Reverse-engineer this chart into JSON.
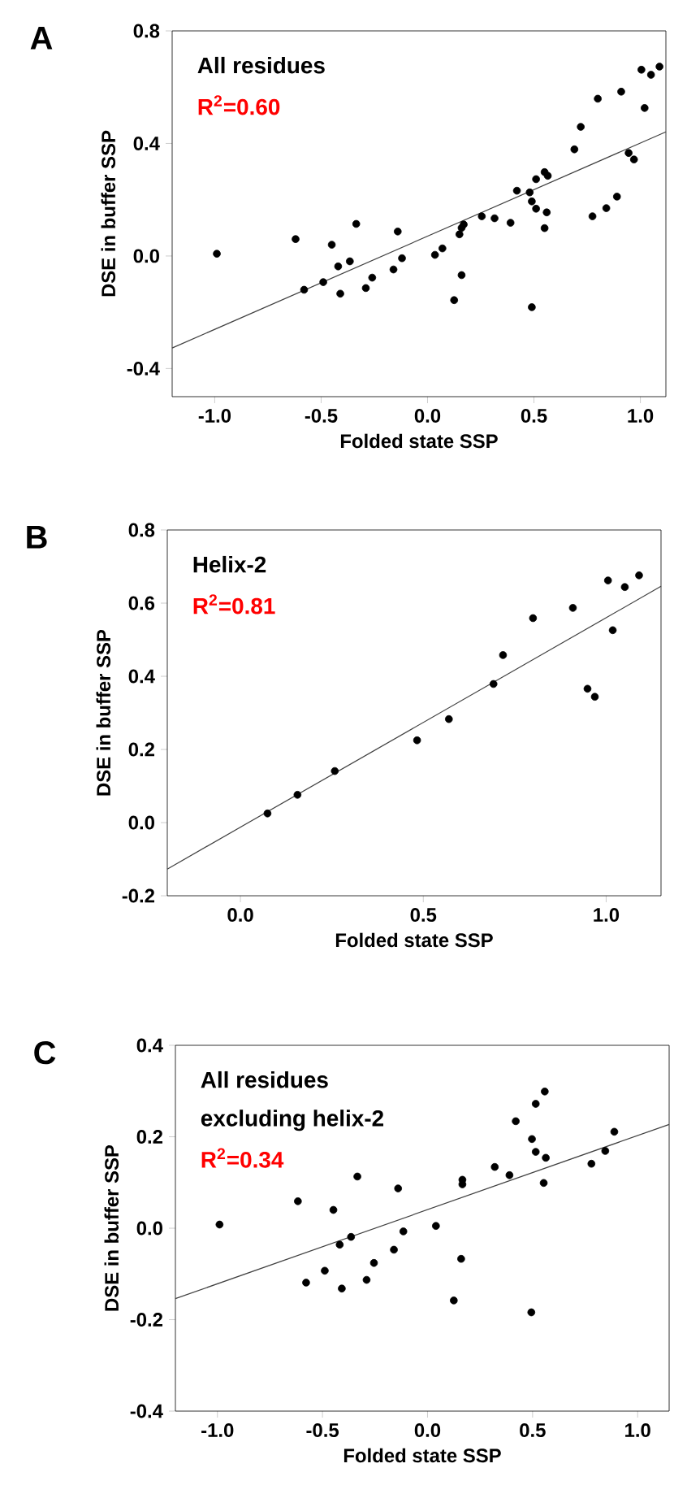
{
  "chart_data": [
    {
      "type": "scatter",
      "title": "A",
      "xlabel": "Folded state SSP",
      "ylabel": "DSE in buffer SSP",
      "annotations": [
        "All residues",
        "R$^{2}$=0.60"
      ],
      "xlim": [
        -1.2,
        1.12
      ],
      "ylim": [
        -0.5,
        0.8
      ],
      "xticks": [
        {
          "value": -1,
          "label": "-1.0"
        },
        {
          "value": -0.5,
          "label": "-0.5"
        },
        {
          "value": 0,
          "label": "0.0"
        },
        {
          "value": 0.5,
          "label": "0.5"
        },
        {
          "value": 1,
          "label": "1.0"
        }
      ],
      "yticks": [
        {
          "value": -0.4,
          "label": "-0.4"
        },
        {
          "value": 0,
          "label": "0.0"
        },
        {
          "value": 0.4,
          "label": "0.4"
        },
        {
          "value": 0.8,
          "label": "0.8"
        }
      ],
      "series": [
        {
          "color": "#000000",
          "x": [
            -0.99,
            -0.62,
            -0.58,
            -0.49,
            -0.45,
            -0.42,
            -0.41,
            -0.365,
            -0.335,
            -0.29,
            -0.26,
            -0.16,
            -0.14,
            -0.12,
            0.035,
            0.07,
            0.125,
            0.15,
            0.16,
            0.17,
            0.16,
            0.255,
            0.315,
            0.39,
            0.42,
            0.48,
            0.49,
            0.51,
            0.51,
            0.55,
            0.565,
            0.56,
            0.55,
            0.49,
            0.69,
            0.72,
            0.775,
            0.8,
            0.84,
            0.89,
            0.91,
            0.945,
            0.97,
            1.005,
            1.02,
            1.05,
            1.09
          ],
          "values": [
            0.008,
            0.06,
            -0.12,
            -0.093,
            0.04,
            -0.037,
            -0.134,
            -0.019,
            0.114,
            -0.114,
            -0.077,
            -0.048,
            0.087,
            -0.008,
            0.004,
            0.027,
            -0.157,
            0.077,
            0.1,
            0.112,
            -0.068,
            0.141,
            0.134,
            0.118,
            0.232,
            0.226,
            0.194,
            0.168,
            0.273,
            0.298,
            0.285,
            0.155,
            0.099,
            -0.182,
            0.379,
            0.459,
            0.141,
            0.559,
            0.17,
            0.211,
            0.584,
            0.366,
            0.343,
            0.662,
            0.526,
            0.644,
            0.673
          ]
        },
        {
          "type": "line",
          "color": "#404040",
          "x": [
            -1.2,
            1.12
          ],
          "values": [
            -0.327,
            0.441
          ]
        }
      ]
    },
    {
      "type": "scatter",
      "title": "B",
      "xlabel": "Folded state SSP",
      "ylabel": "DSE in buffer SSP",
      "annotations": [
        "Helix-2",
        "R$^{2}$=0.81"
      ],
      "xlim": [
        -0.2,
        1.15
      ],
      "ylim": [
        -0.2,
        0.8
      ],
      "xticks": [
        {
          "value": 0,
          "label": "0.0"
        },
        {
          "value": 0.5,
          "label": "0.5"
        },
        {
          "value": 1,
          "label": "1.0"
        }
      ],
      "yticks": [
        {
          "value": -0.2,
          "label": "-0.2"
        },
        {
          "value": 0,
          "label": "0.0"
        },
        {
          "value": 0.2,
          "label": "0.2"
        },
        {
          "value": 0.4,
          "label": "0.4"
        },
        {
          "value": 0.6,
          "label": "0.6"
        },
        {
          "value": 0.8,
          "label": "0.8"
        }
      ],
      "series": [
        {
          "color": "#000000",
          "x": [
            0.074,
            0.156,
            0.258,
            0.483,
            0.57,
            0.692,
            0.718,
            0.8,
            0.909,
            0.949,
            0.969,
            1.005,
            1.018,
            1.051,
            1.09
          ],
          "values": [
            0.025,
            0.076,
            0.141,
            0.225,
            0.283,
            0.379,
            0.458,
            0.559,
            0.587,
            0.366,
            0.344,
            0.662,
            0.526,
            0.644,
            0.676
          ]
        },
        {
          "type": "line",
          "color": "#404040",
          "x": [
            -0.2,
            1.15
          ],
          "values": [
            -0.127,
            0.646
          ]
        }
      ]
    },
    {
      "type": "scatter",
      "title": "C",
      "xlabel": "Folded state SSP",
      "ylabel": "DSE in buffer SSP",
      "annotations": [
        "All residues",
        "excluding helix-2",
        "R$^{2}$=0.34"
      ],
      "xlim": [
        -1.2,
        1.15
      ],
      "ylim": [
        -0.4,
        0.4
      ],
      "xticks": [
        {
          "value": -1,
          "label": "-1.0"
        },
        {
          "value": -0.5,
          "label": "-0.5"
        },
        {
          "value": 0,
          "label": "0.0"
        },
        {
          "value": 0.5,
          "label": "0.5"
        },
        {
          "value": 1,
          "label": "1.0"
        }
      ],
      "yticks": [
        {
          "value": -0.4,
          "label": "-0.4"
        },
        {
          "value": -0.2,
          "label": "-0.2"
        },
        {
          "value": 0,
          "label": "0.0"
        },
        {
          "value": 0.2,
          "label": "0.2"
        },
        {
          "value": 0.4,
          "label": "0.4"
        }
      ],
      "series": [
        {
          "color": "#000000",
          "x": [
            -0.99,
            -0.617,
            -0.578,
            -0.489,
            -0.448,
            -0.418,
            -0.408,
            -0.364,
            -0.334,
            -0.29,
            -0.255,
            -0.16,
            -0.14,
            -0.115,
            0.04,
            0.125,
            0.16,
            0.166,
            0.166,
            0.32,
            0.39,
            0.42,
            0.497,
            0.515,
            0.515,
            0.558,
            0.563,
            0.553,
            0.494,
            0.78,
            0.846,
            0.889
          ],
          "values": [
            0.008,
            0.059,
            -0.119,
            -0.093,
            0.04,
            -0.036,
            -0.132,
            -0.019,
            0.113,
            -0.113,
            -0.076,
            -0.047,
            0.087,
            -0.007,
            0.005,
            -0.158,
            -0.067,
            0.106,
            0.096,
            0.134,
            0.116,
            0.234,
            0.195,
            0.167,
            0.272,
            0.299,
            0.154,
            0.099,
            -0.184,
            0.141,
            0.169,
            0.211
          ]
        },
        {
          "type": "line",
          "color": "#404040",
          "x": [
            -1.2,
            1.15
          ],
          "values": [
            -0.154,
            0.227
          ]
        }
      ]
    }
  ]
}
